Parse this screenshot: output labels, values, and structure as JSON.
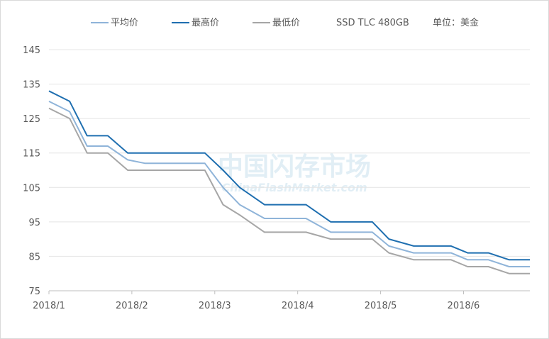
{
  "chart_data": {
    "type": "line",
    "legend": {
      "placement": "top",
      "extra_text": [
        "SSD TLC 480GB",
        "单位：美金"
      ]
    },
    "watermark": {
      "text": "中国闪存市场",
      "subtext": "ChinaFlashMarket.com"
    },
    "y_axis": {
      "ylim": [
        75,
        145
      ],
      "ticks": [
        75,
        85,
        95,
        105,
        115,
        125,
        135,
        145
      ],
      "tick_labels": [
        "75",
        "85",
        "95",
        "105",
        "115",
        "125",
        "135",
        "145"
      ]
    },
    "x_axis": {
      "xlim": [
        0,
        5.8
      ],
      "ticks": [
        0,
        1,
        2,
        3,
        4,
        5
      ],
      "tick_labels": [
        "2018/1",
        "2018/2",
        "2018/3",
        "2018/4",
        "2018/5",
        "2018/6"
      ]
    },
    "grid": "horizontal",
    "x": [
      0,
      0.25,
      0.46,
      0.71,
      0.95,
      1.16,
      1.42,
      1.67,
      1.88,
      2.1,
      2.3,
      2.6,
      2.85,
      3.1,
      3.4,
      3.7,
      3.9,
      4.1,
      4.4,
      4.6,
      4.85,
      5.05,
      5.3,
      5.55,
      5.8
    ],
    "series": [
      {
        "name": "平均价",
        "color": "#8fb4d9",
        "values": [
          130,
          127,
          117,
          117,
          113,
          112,
          112,
          112,
          112,
          105,
          100,
          96,
          96,
          96,
          92,
          92,
          92,
          88,
          86,
          86,
          86,
          84,
          84,
          82,
          82
        ]
      },
      {
        "name": "最高价",
        "color": "#1f6fb0",
        "values": [
          133,
          130,
          120,
          120,
          115,
          115,
          115,
          115,
          115,
          110,
          105,
          100,
          100,
          100,
          95,
          95,
          95,
          90,
          88,
          88,
          88,
          86,
          86,
          84,
          84
        ]
      },
      {
        "name": "最低价",
        "color": "#a6a6a6",
        "values": [
          128,
          125,
          115,
          115,
          110,
          110,
          110,
          110,
          110,
          100,
          97,
          92,
          92,
          92,
          90,
          90,
          90,
          86,
          84,
          84,
          84,
          82,
          82,
          80,
          80
        ]
      }
    ]
  }
}
